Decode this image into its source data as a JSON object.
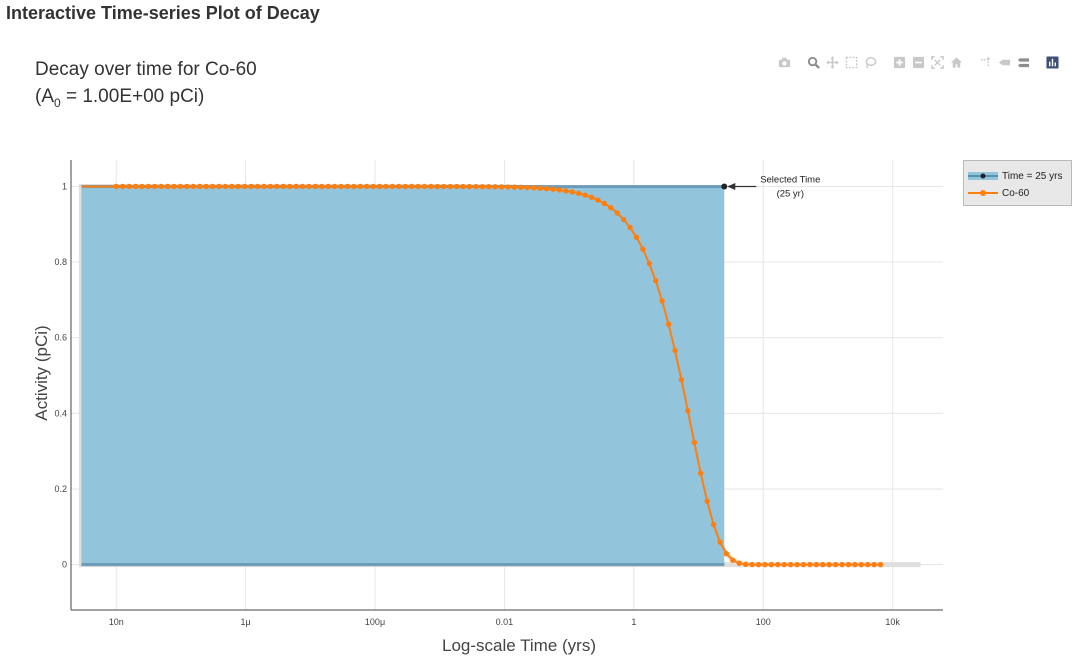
{
  "page": {
    "heading": "Interactive Time-series Plot of Decay"
  },
  "chart_data": {
    "type": "line",
    "title_line1": "Decay over time for Co-60",
    "title_line2_prefix": "(A",
    "title_line2_sub": "0",
    "title_line2_suffix": " = 1.00E+00 pCi)",
    "xlabel": "Log-scale Time (yrs)",
    "ylabel": "Activity (pCi)",
    "x_scale": "log",
    "xlim": [
      2e-09,
      60000
    ],
    "ylim": [
      -0.12,
      1.07
    ],
    "x_ticks": [
      1e-08,
      1e-06,
      0.0001,
      0.01,
      1,
      100,
      10000
    ],
    "x_tick_labels": [
      "10n",
      "1μ",
      "100μ",
      "0.01",
      "1",
      "100",
      "10k"
    ],
    "y_ticks": [
      0,
      0.2,
      0.4,
      0.6,
      0.8,
      1
    ],
    "y_tick_labels": [
      "0",
      "0.2",
      "0.4",
      "0.6",
      "0.8",
      "1"
    ],
    "grid": true,
    "legend_position": "top-right",
    "half_life_years": 5.27,
    "series": [
      {
        "name": "Co-60",
        "color": "#ff7f0e",
        "x_start": 1e-08,
        "x_end": 6500,
        "n_points": 120,
        "formula": "exponential decay A(t) = A0 * 0.5^(t / 5.27)"
      }
    ],
    "selected_time": {
      "legend_label": "Time = 25 yrs",
      "x": 25,
      "y": 1,
      "fill_color": "#92c4dc",
      "annotation_line1": "Selected Time",
      "annotation_line2": "(25 yr)"
    }
  },
  "modebar": {
    "icons": [
      "camera-icon",
      "zoom-icon",
      "pan-icon",
      "box-select-icon",
      "lasso-select-icon",
      "zoom-in-icon",
      "zoom-out-icon",
      "autoscale-icon",
      "reset-axes-icon",
      "spike-lines-icon",
      "hover-closest-icon",
      "hover-compare-icon",
      "plotly-logo-icon"
    ]
  }
}
